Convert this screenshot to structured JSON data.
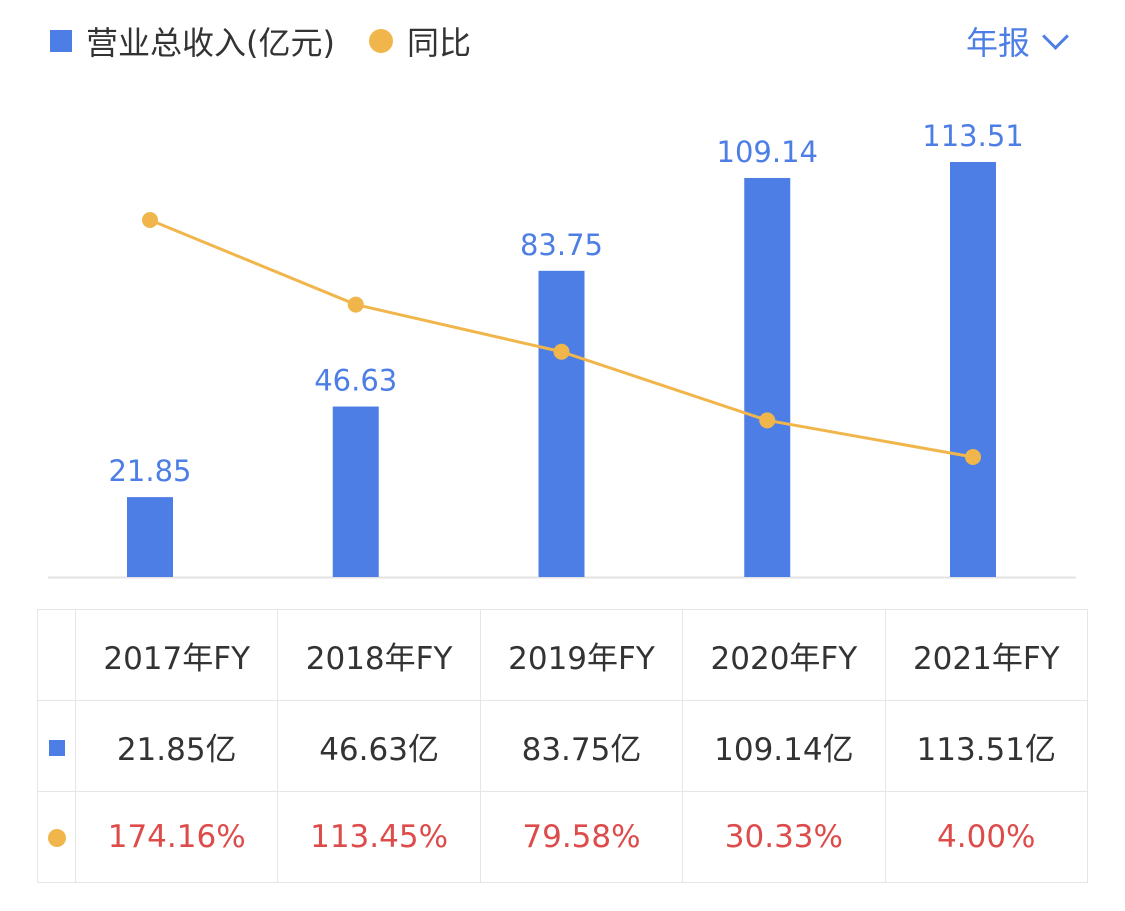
{
  "legend": {
    "bar_label": "营业总收入(亿元)",
    "line_label": "同比"
  },
  "period_selector": {
    "label": "年报"
  },
  "colors": {
    "bar": "#4d7ee6",
    "line": "#f1b64b",
    "pct": "#dd4b4b"
  },
  "chart_data": {
    "type": "bar+line",
    "categories": [
      "2017年FY",
      "2018年FY",
      "2019年FY",
      "2020年FY",
      "2021年FY"
    ],
    "series": [
      {
        "name": "营业总收入(亿元)",
        "type": "bar",
        "values": [
          21.85,
          46.63,
          83.75,
          109.14,
          113.51
        ],
        "labels": [
          "21.85",
          "46.63",
          "83.75",
          "109.14",
          "113.51"
        ]
      },
      {
        "name": "同比",
        "type": "line",
        "values": [
          174.16,
          113.45,
          79.58,
          30.33,
          4.0
        ]
      }
    ]
  },
  "table": {
    "headers": [
      "2017年FY",
      "2018年FY",
      "2019年FY",
      "2020年FY",
      "2021年FY"
    ],
    "revenue": [
      "21.85亿",
      "46.63亿",
      "83.75亿",
      "109.14亿",
      "113.51亿"
    ],
    "yoy": [
      "174.16%",
      "113.45%",
      "79.58%",
      "30.33%",
      "4.00%"
    ]
  }
}
